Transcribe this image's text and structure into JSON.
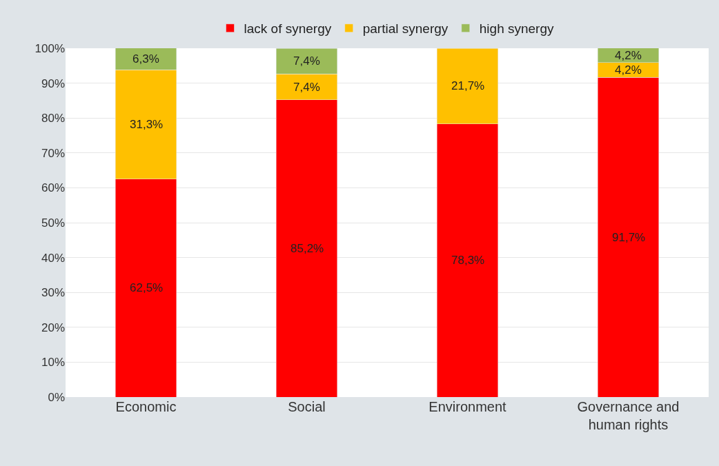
{
  "chart_data": {
    "type": "bar",
    "stacked": true,
    "categories": [
      "Economic",
      "Social",
      "Environment",
      "Governance and human rights"
    ],
    "series": [
      {
        "name": "lack of synergy",
        "color": "#ff0000",
        "values": [
          62.5,
          85.2,
          78.3,
          91.7
        ],
        "value_labels": [
          "62,5%",
          "85,2%",
          "78,3%",
          "91,7%"
        ]
      },
      {
        "name": "partial synergy",
        "color": "#ffc000",
        "values": [
          31.3,
          7.4,
          21.7,
          4.2
        ],
        "value_labels": [
          "31,3%",
          "7,4%",
          "21,7%",
          "4,2%"
        ]
      },
      {
        "name": "high synergy",
        "color": "#9bbb59",
        "values": [
          6.3,
          7.4,
          null,
          4.2
        ],
        "value_labels": [
          "6,3%",
          "7,4%",
          null,
          "4,2%"
        ]
      }
    ],
    "ylim": [
      0,
      100
    ],
    "yticks": [
      {
        "value": 0,
        "label": "0%"
      },
      {
        "value": 10,
        "label": "10%"
      },
      {
        "value": 20,
        "label": "20%"
      },
      {
        "value": 30,
        "label": "30%"
      },
      {
        "value": 40,
        "label": "40%"
      },
      {
        "value": 50,
        "label": "50%"
      },
      {
        "value": 60,
        "label": "60%"
      },
      {
        "value": 70,
        "label": "70%"
      },
      {
        "value": 80,
        "label": "80%"
      },
      {
        "value": 90,
        "label": "90%"
      },
      {
        "value": 100,
        "label": "100%"
      }
    ],
    "grid": "y",
    "legend": "top"
  }
}
